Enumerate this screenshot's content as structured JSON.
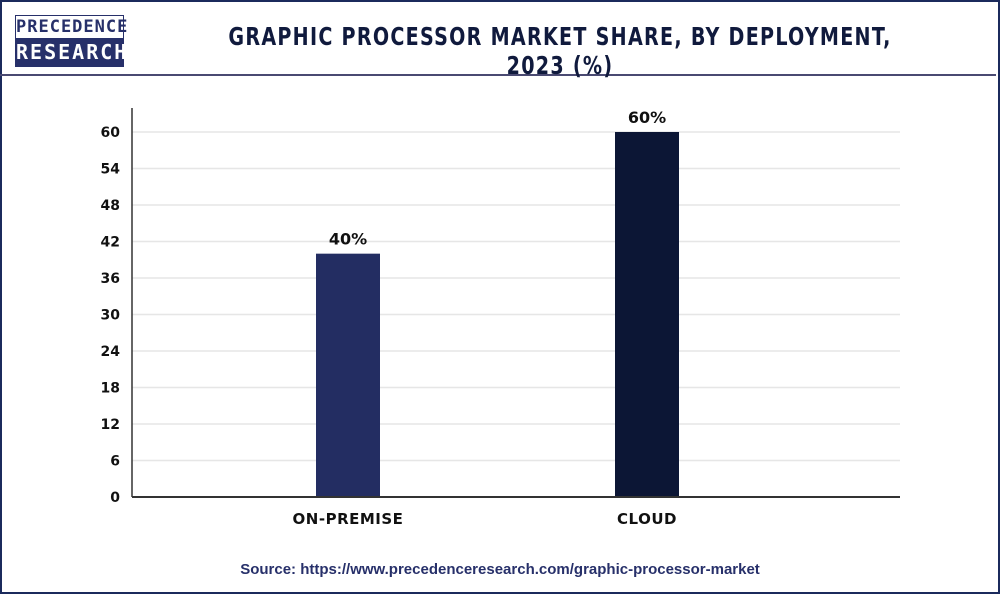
{
  "logo": {
    "line1": "PRECEDENCE",
    "line2": "RESEARCH"
  },
  "title": "GRAPHIC PROCESSOR MARKET SHARE, BY DEPLOYMENT, 2023 (%)",
  "source": "Source: https://www.precedenceresearch.com/graphic-processor-market",
  "colors": {
    "on_premise": "#232d62",
    "cloud": "#0c1635",
    "grid": "#e6e6e6",
    "axis": "#333333"
  },
  "chart_data": {
    "type": "bar",
    "title": "GRAPHIC PROCESSOR MARKET SHARE, BY DEPLOYMENT, 2023 (%)",
    "categories": [
      "ON-PREMISE",
      "CLOUD"
    ],
    "values": [
      40,
      60
    ],
    "data_labels": [
      "40%",
      "60%"
    ],
    "yticks": [
      "0",
      "6",
      "12",
      "18",
      "24",
      "30",
      "36",
      "42",
      "48",
      "54",
      "60"
    ],
    "ylim": [
      0,
      64
    ],
    "grid": true,
    "xlabel": "",
    "ylabel": ""
  }
}
